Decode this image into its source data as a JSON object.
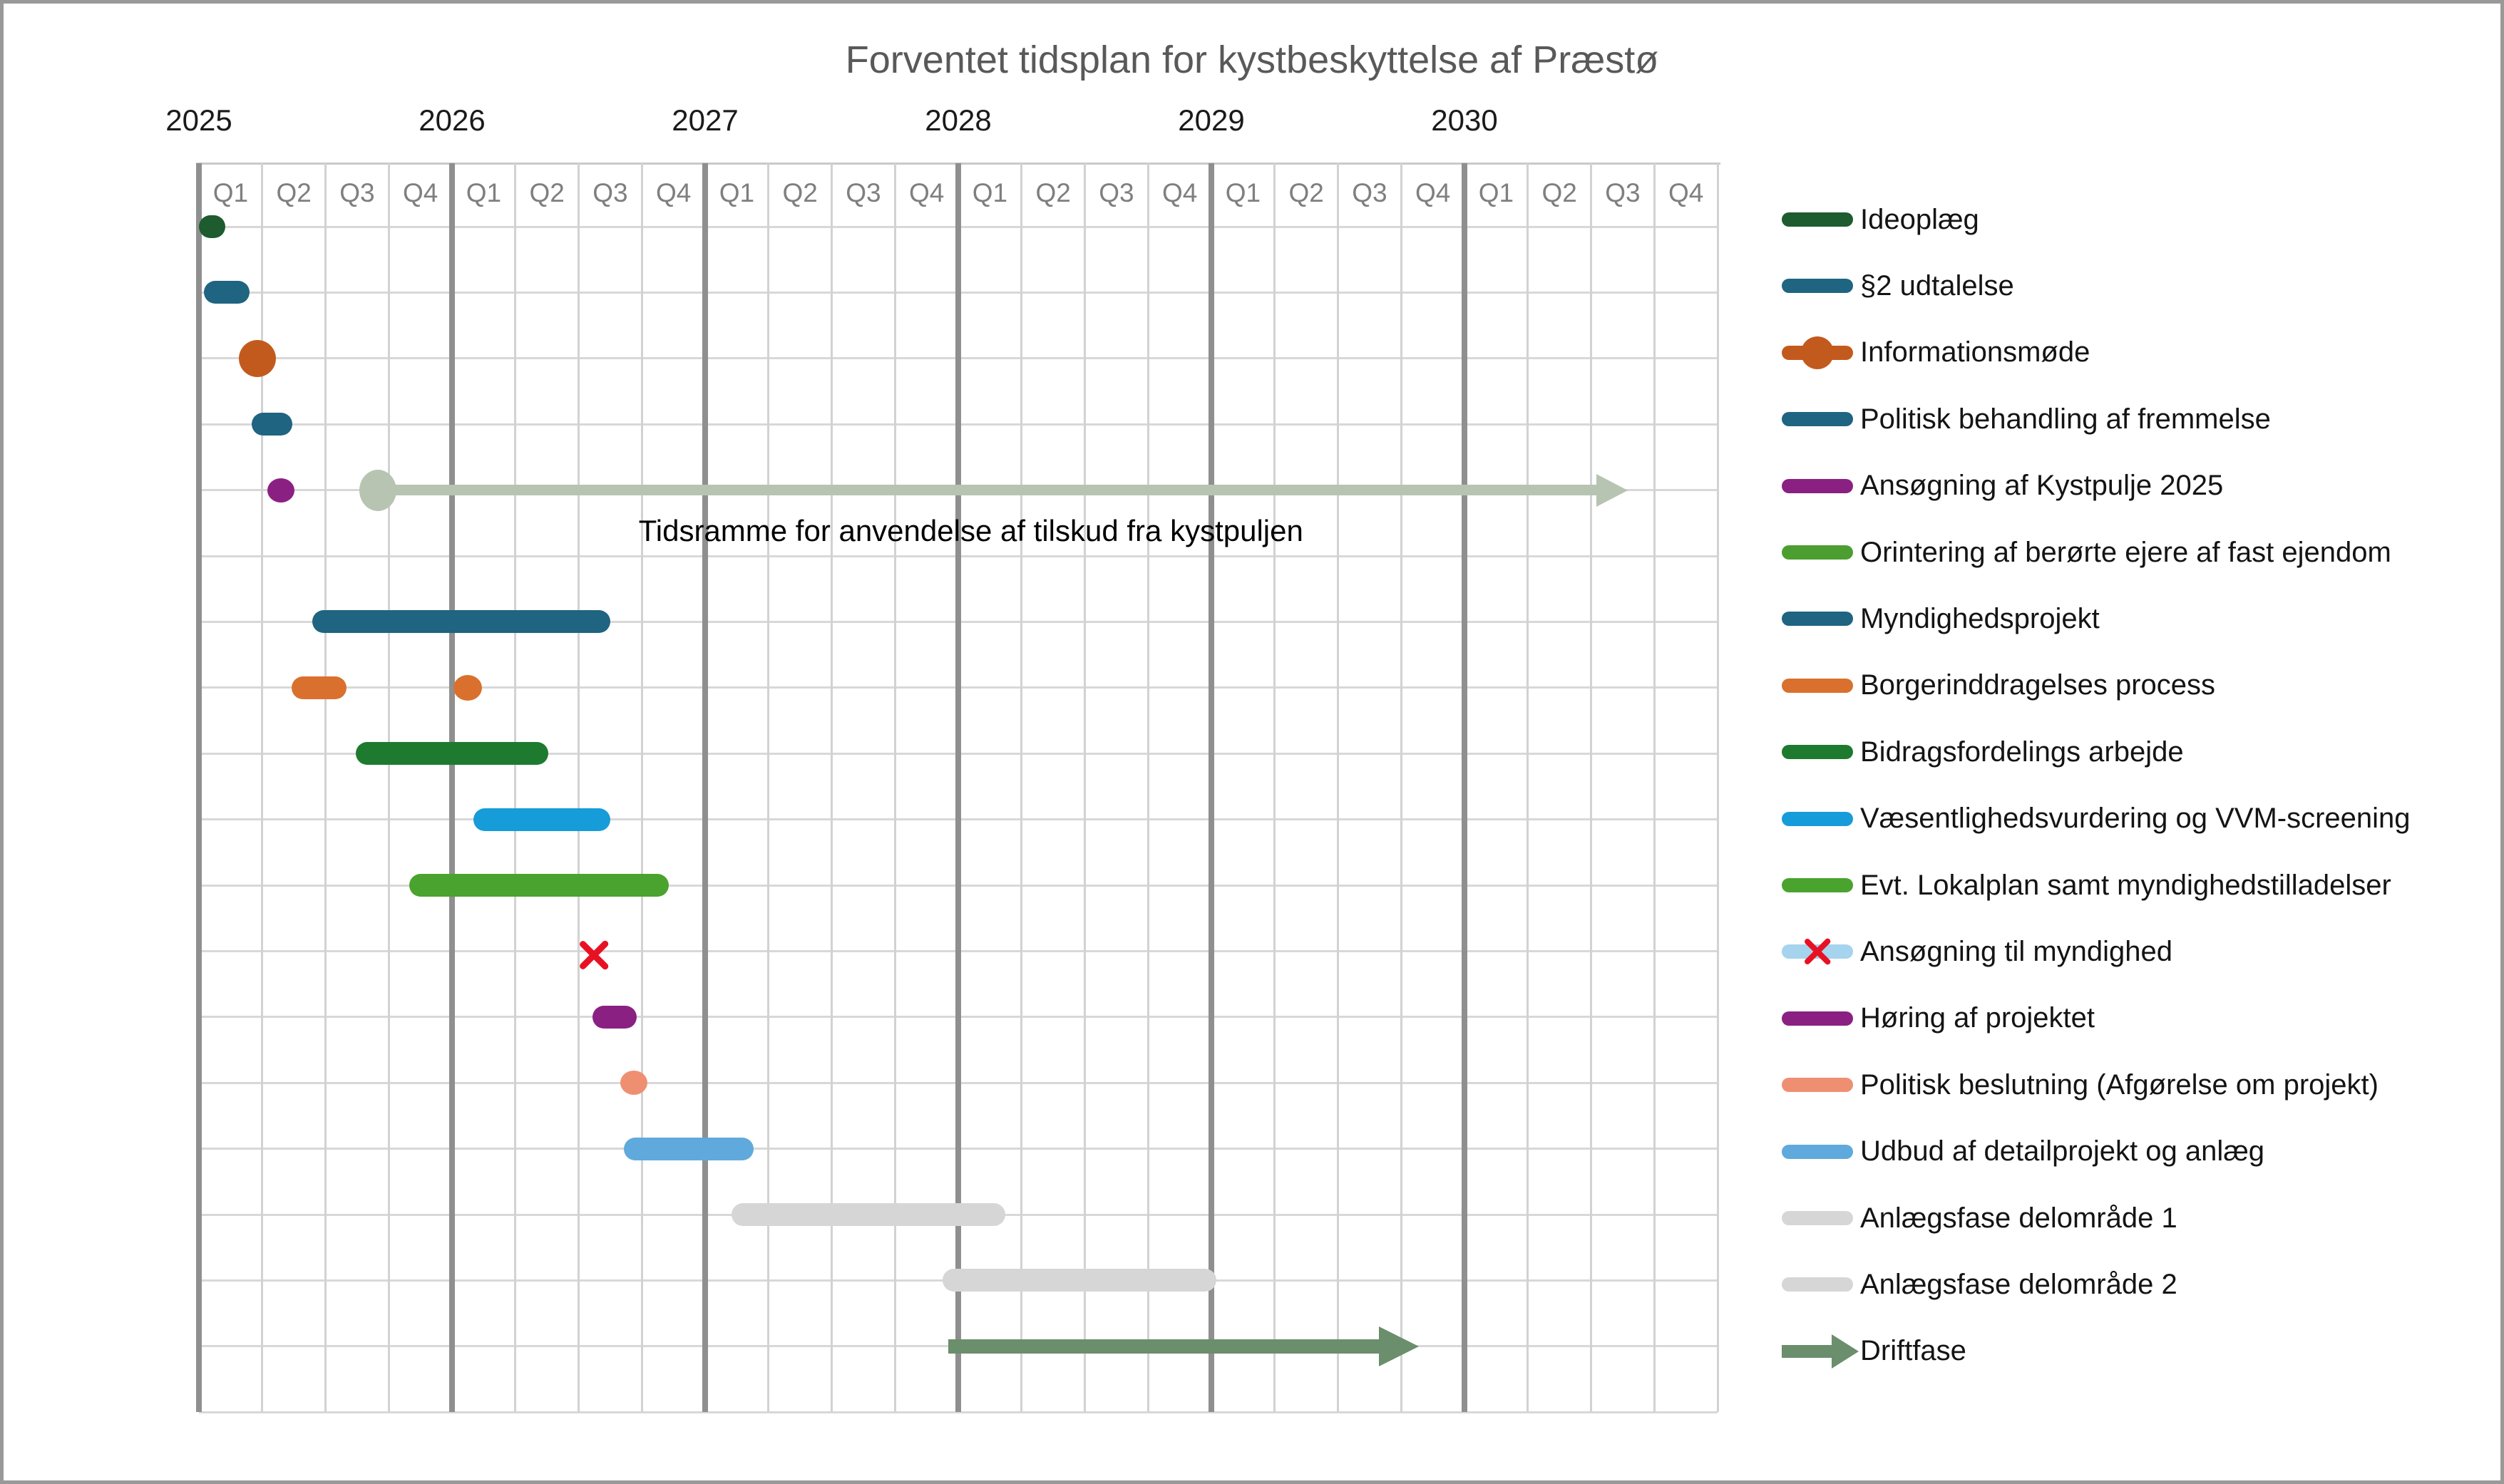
{
  "title": "Forventet tidsplan for kystbeskyttelse af Præstø",
  "colors": {
    "title": "#595959",
    "year_label": "#1a1a1a",
    "quarter_label": "#7f7f7f",
    "grid_thin": "#d2d2d2",
    "grid_row": "#d8d8d8",
    "grid_year": "#8f8f8f",
    "header_line": "#c9c9c9",
    "frame_border": "#999999",
    "annotation_arrow": "#b7c4b2",
    "x_marker_red": "#e81123"
  },
  "chart_data": {
    "type": "gantt",
    "title": "Forventet tidsplan for kystbeskyttelse af Præstø",
    "time_unit": "quarters_from_2025Q1",
    "x_axis": {
      "years": [
        "2025",
        "2026",
        "2027",
        "2028",
        "2029",
        "2030"
      ],
      "quarter_labels": [
        "Q1",
        "Q2",
        "Q3",
        "Q4"
      ],
      "total_quarters": 24,
      "grid": true
    },
    "annotation": {
      "label": "Tidsramme for anvendelse af tilskud fra kystpuljen",
      "type": "range-arrow",
      "row": 4,
      "start_q": 2.83,
      "tip_q": 22.58,
      "has_start_circle": true,
      "color": "#b7c4b2",
      "label_center_q": 12.2
    },
    "tasks": [
      {
        "name": "Ideoplæg",
        "row": 0,
        "type": "bar",
        "start_q": 0.0,
        "end_q": 0.42,
        "color": "#1e5b2f"
      },
      {
        "name": "§2 udtalelse",
        "row": 1,
        "type": "bar",
        "start_q": 0.08,
        "end_q": 0.8,
        "color": "#1f6480"
      },
      {
        "name": "Informationsmøde",
        "row": 2,
        "type": "circle",
        "at_q": 0.92,
        "size": "large",
        "color": "#c35a1d"
      },
      {
        "name": "Politisk behandling af fremmelse",
        "row": 3,
        "type": "bar",
        "start_q": 0.83,
        "end_q": 1.48,
        "color": "#1f6480"
      },
      {
        "name": "Ansøgning af Kystpulje 2025",
        "row": 4,
        "type": "circle",
        "at_q": 1.3,
        "size": "small",
        "color": "#8b2083"
      },
      {
        "name": "Myndighedsprojekt",
        "row": 6,
        "type": "bar",
        "start_q": 1.79,
        "end_q": 6.5,
        "color": "#1f6480"
      },
      {
        "name": "Borgerinddragelses process",
        "row": 7,
        "type": "bar",
        "start_q": 1.46,
        "end_q": 2.33,
        "dot_q": 4.25,
        "color": "#d9702e"
      },
      {
        "name": "Bidragsfordelings arbejde",
        "row": 8,
        "type": "bar",
        "start_q": 2.48,
        "end_q": 5.52,
        "color": "#1e7a2e"
      },
      {
        "name": "Væsentlighedsvurdering og VVM-screening",
        "row": 9,
        "type": "bar",
        "start_q": 4.34,
        "end_q": 6.5,
        "color": "#169cd8"
      },
      {
        "name": "Evt. Lokalplan samt myndighedstilladelser",
        "row": 10,
        "type": "bar",
        "start_q": 3.32,
        "end_q": 7.43,
        "color": "#4aa32e"
      },
      {
        "name": "Ansøgning til myndighed",
        "row": 11,
        "type": "x",
        "at_q": 6.24,
        "color": "#e81123"
      },
      {
        "name": "Høring af projektet",
        "row": 12,
        "type": "bar",
        "start_q": 6.22,
        "end_q": 6.92,
        "color": "#8b2083"
      },
      {
        "name": "Politisk beslutning (Afgørelse om projekt)",
        "row": 13,
        "type": "circle",
        "at_q": 6.87,
        "size": "small",
        "color": "#ef8f72"
      },
      {
        "name": "Udbud af detailprojekt og anlæg",
        "row": 14,
        "type": "bar",
        "start_q": 6.72,
        "end_q": 8.77,
        "color": "#60a9dc"
      },
      {
        "name": "Anlægsfase delområde 1",
        "row": 15,
        "type": "bar",
        "start_q": 8.42,
        "end_q": 12.74,
        "color": "#d6d6d6"
      },
      {
        "name": "Anlægsfase delområde 2",
        "row": 16,
        "type": "bar",
        "start_q": 11.75,
        "end_q": 16.08,
        "color": "#d6d6d6"
      },
      {
        "name": "Driftfase",
        "row": 17,
        "type": "arrow",
        "start_q": 11.84,
        "tip_q": 19.28,
        "color": "#6b8e6c"
      }
    ]
  },
  "legend": {
    "items": [
      {
        "label": "Ideoplæg",
        "swatch": "line",
        "color": "#1e5b2f"
      },
      {
        "label": "§2 udtalelse",
        "swatch": "line",
        "color": "#1f6480"
      },
      {
        "label": "Informationsmøde",
        "swatch": "line-circle",
        "color": "#c35a1d"
      },
      {
        "label": "Politisk behandling af fremmelse",
        "swatch": "line",
        "color": "#1f6480"
      },
      {
        "label": "Ansøgning af Kystpulje 2025",
        "swatch": "line",
        "color": "#8b2083"
      },
      {
        "label": "Orintering af berørte ejere af fast ejendom",
        "swatch": "line",
        "color": "#4d9e31"
      },
      {
        "label": "Myndighedsprojekt",
        "swatch": "line",
        "color": "#1f6480"
      },
      {
        "label": "Borgerinddragelses process",
        "swatch": "line",
        "color": "#d9702e"
      },
      {
        "label": "Bidragsfordelings arbejde",
        "swatch": "line",
        "color": "#1e7a2e"
      },
      {
        "label": "Væsentlighedsvurdering og VVM-screening",
        "swatch": "line",
        "color": "#169cd8"
      },
      {
        "label": "Evt. Lokalplan samt myndighedstilladelser",
        "swatch": "line",
        "color": "#4aa32e"
      },
      {
        "label": "Ansøgning til myndighed",
        "swatch": "line-x",
        "color": "#a6d3ee",
        "x_color": "#e81123"
      },
      {
        "label": "Høring af projektet",
        "swatch": "line",
        "color": "#8b2083"
      },
      {
        "label": "Politisk beslutning (Afgørelse om projekt)",
        "swatch": "line",
        "color": "#ef8f72"
      },
      {
        "label": "Udbud af detailprojekt og anlæg",
        "swatch": "line",
        "color": "#60a9dc"
      },
      {
        "label": "Anlægsfase delområde 1",
        "swatch": "line",
        "color": "#d6d6d6"
      },
      {
        "label": "Anlægsfase delområde 2",
        "swatch": "line",
        "color": "#d6d6d6"
      },
      {
        "label": "Driftfase",
        "swatch": "arrow",
        "color": "#6b8e6c"
      }
    ]
  }
}
